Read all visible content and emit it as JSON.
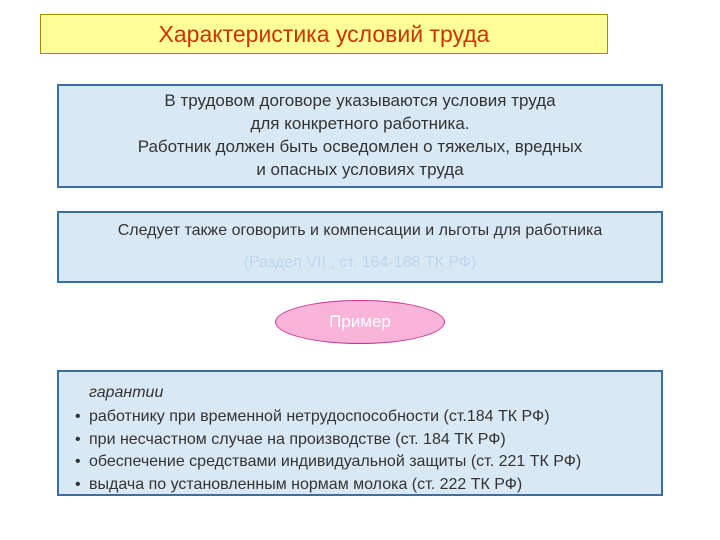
{
  "title": {
    "text": "Характеристика условий труда",
    "bg": "#ffff99",
    "color": "#cc3300",
    "border": "#b38600"
  },
  "block1": {
    "lines": [
      "В трудовом договоре указываются условия труда",
      "для конкретного работника.",
      "Работник должен быть осведомлен о тяжелых, вредных",
      "и опасных условиях труда"
    ],
    "bg": "#d9e8f5",
    "color": "#333333",
    "border": "#3a6ea5"
  },
  "block2": {
    "line": "Следует также оговорить и компенсации и льготы для работника",
    "sub": "(Раздел VII , ст. 164-188 ТК РФ)",
    "bg": "#d9e8f5",
    "color": "#333333",
    "sub_color": "#bdd7ee",
    "border": "#3a6ea5"
  },
  "ellipse": {
    "label": "Пример",
    "bg": "#f8b4d9",
    "color": "#ffffff",
    "border": "#cc3399"
  },
  "block3": {
    "head": "гарантии",
    "items": [
      "работнику при временной нетрудоспособности (ст.184 ТК РФ)",
      "при несчастном случае на производстве (ст. 184 ТК РФ)",
      "обеспечение средствами индивидуальной защиты (ст. 221 ТК РФ)",
      "выдача по установленным нормам молока (ст. 222 ТК РФ)"
    ],
    "bg": "#d9e8f5",
    "color": "#333333",
    "border": "#3a6ea5"
  }
}
